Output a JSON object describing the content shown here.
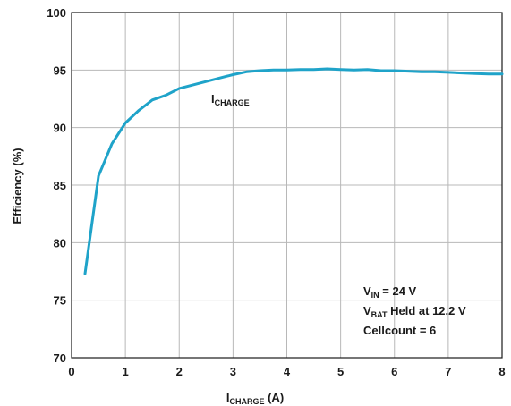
{
  "chart_data": {
    "type": "line",
    "xlabel": {
      "main": "I",
      "sub": "CHARGE",
      "rest": " (A)"
    },
    "ylabel": "Efficiency (%)",
    "xlim": [
      0,
      8
    ],
    "ylim": [
      70,
      100
    ],
    "x_ticks": [
      "0",
      "1",
      "2",
      "3",
      "4",
      "5",
      "6",
      "7",
      "8"
    ],
    "y_ticks": [
      "70",
      "75",
      "80",
      "85",
      "90",
      "95",
      "100"
    ],
    "grid": true,
    "line_color": "#1fa3c9",
    "series": [
      {
        "label": {
          "main": "I",
          "sub": "CHARGE"
        },
        "x": [
          0.25,
          0.5,
          0.75,
          1.0,
          1.25,
          1.5,
          1.75,
          2.0,
          2.25,
          2.5,
          2.75,
          3.0,
          3.25,
          3.5,
          3.75,
          4.0,
          4.25,
          4.5,
          4.75,
          5.0,
          5.25,
          5.5,
          5.75,
          6.0,
          6.25,
          6.5,
          6.75,
          7.0,
          7.25,
          7.5,
          7.75,
          8.0
        ],
        "y": [
          77.3,
          85.8,
          88.6,
          90.4,
          91.5,
          92.4,
          92.8,
          93.4,
          93.7,
          94.0,
          94.3,
          94.6,
          94.85,
          94.95,
          95.0,
          95.0,
          95.05,
          95.05,
          95.1,
          95.05,
          95.0,
          95.05,
          94.95,
          94.95,
          94.9,
          94.85,
          94.85,
          94.8,
          94.75,
          94.7,
          94.65,
          94.65
        ]
      }
    ],
    "annotation": {
      "lines": [
        {
          "main": "V",
          "sub": "IN",
          "rest": " = 24 V"
        },
        {
          "main": "V",
          "sub": "BAT",
          "rest": " Held at 12.2 V"
        },
        {
          "main": "Cellcount = 6",
          "sub": "",
          "rest": ""
        }
      ]
    }
  }
}
